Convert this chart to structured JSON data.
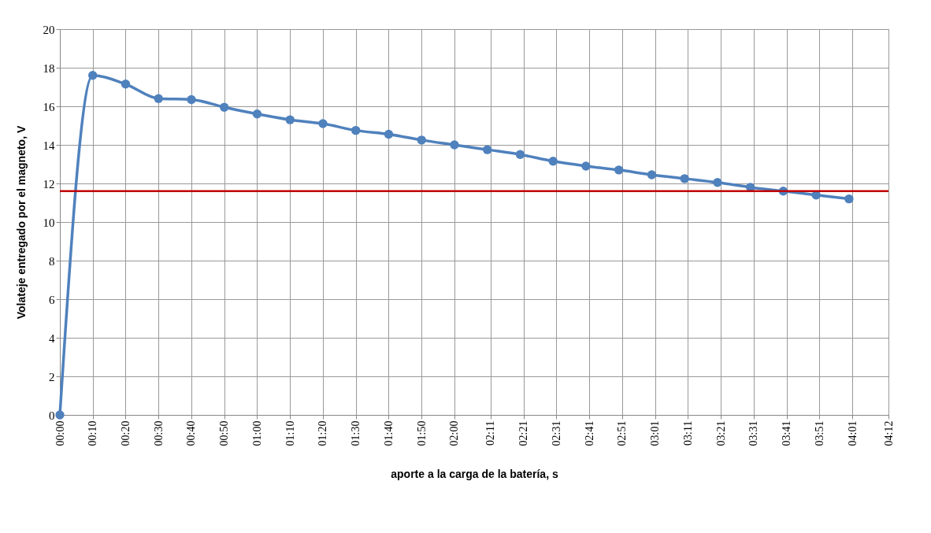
{
  "chart_data": {
    "type": "line",
    "xlabel": "aporte a la carga de la batería, s",
    "ylabel": "Volateje entregado por el magneto, V",
    "x": [
      0,
      10,
      20,
      30,
      40,
      50,
      60,
      70,
      80,
      90,
      100,
      110,
      120,
      130,
      140,
      150,
      160,
      170,
      180,
      190,
      200,
      210,
      220,
      230,
      240
    ],
    "series": [
      {
        "color": "#4f81bd",
        "values": [
          0,
          17.6,
          17.15,
          16.4,
          16.35,
          15.95,
          15.6,
          15.3,
          15.1,
          14.75,
          14.55,
          14.25,
          14.0,
          13.75,
          13.5,
          13.15,
          12.9,
          12.7,
          12.45,
          12.25,
          12.05,
          11.8,
          11.6,
          11.4,
          11.2
        ]
      }
    ],
    "marker": "circle",
    "ref_lines": [
      {
        "axis": "y",
        "value": 11.6,
        "color": "#c00000"
      }
    ],
    "xlim": [
      0,
      252
    ],
    "xticks": [
      {
        "value": 0,
        "label": "00:00"
      },
      {
        "value": 10,
        "label": "00:10"
      },
      {
        "value": 20,
        "label": "00:20"
      },
      {
        "value": 30,
        "label": "00:30"
      },
      {
        "value": 40,
        "label": "00:40"
      },
      {
        "value": 50,
        "label": "00:50"
      },
      {
        "value": 60,
        "label": "01:00"
      },
      {
        "value": 70,
        "label": "01:10"
      },
      {
        "value": 80,
        "label": "01:20"
      },
      {
        "value": 90,
        "label": "01:30"
      },
      {
        "value": 100,
        "label": "01:40"
      },
      {
        "value": 110,
        "label": "01:50"
      },
      {
        "value": 120,
        "label": "02:00"
      },
      {
        "value": 131,
        "label": "02:11"
      },
      {
        "value": 141,
        "label": "02:21"
      },
      {
        "value": 151,
        "label": "02:31"
      },
      {
        "value": 161,
        "label": "02:41"
      },
      {
        "value": 171,
        "label": "02:51"
      },
      {
        "value": 181,
        "label": "03:01"
      },
      {
        "value": 191,
        "label": "03:11"
      },
      {
        "value": 201,
        "label": "03:21"
      },
      {
        "value": 211,
        "label": "03:31"
      },
      {
        "value": 221,
        "label": "03:41"
      },
      {
        "value": 231,
        "label": "03:51"
      },
      {
        "value": 241,
        "label": "04:01"
      },
      {
        "value": 252,
        "label": "04:12"
      }
    ],
    "ylim": [
      0,
      20
    ],
    "yticks": [
      0,
      2,
      4,
      6,
      8,
      10,
      12,
      14,
      16,
      18,
      20
    ],
    "grid": true
  }
}
